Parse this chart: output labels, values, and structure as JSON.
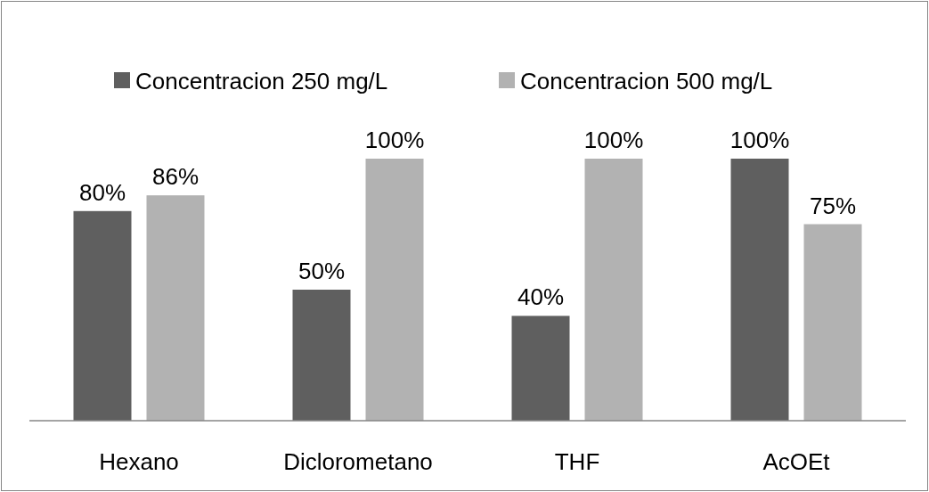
{
  "chart_data": {
    "type": "bar",
    "categories": [
      "Hexano",
      "Diclorometano",
      "THF",
      "AcOEt"
    ],
    "series": [
      {
        "name": "Concentracion 250 mg/L",
        "color": "#5f5f5f",
        "values": [
          80,
          50,
          40,
          100
        ],
        "value_labels": [
          "80%",
          "50%",
          "40%",
          "100%"
        ]
      },
      {
        "name": "Concentracion 500 mg/L",
        "color": "#b2b2b2",
        "values": [
          86,
          100,
          100,
          75
        ],
        "value_labels": [
          "86%",
          "100%",
          "100%",
          "75%"
        ]
      }
    ],
    "legend": "top"
  }
}
